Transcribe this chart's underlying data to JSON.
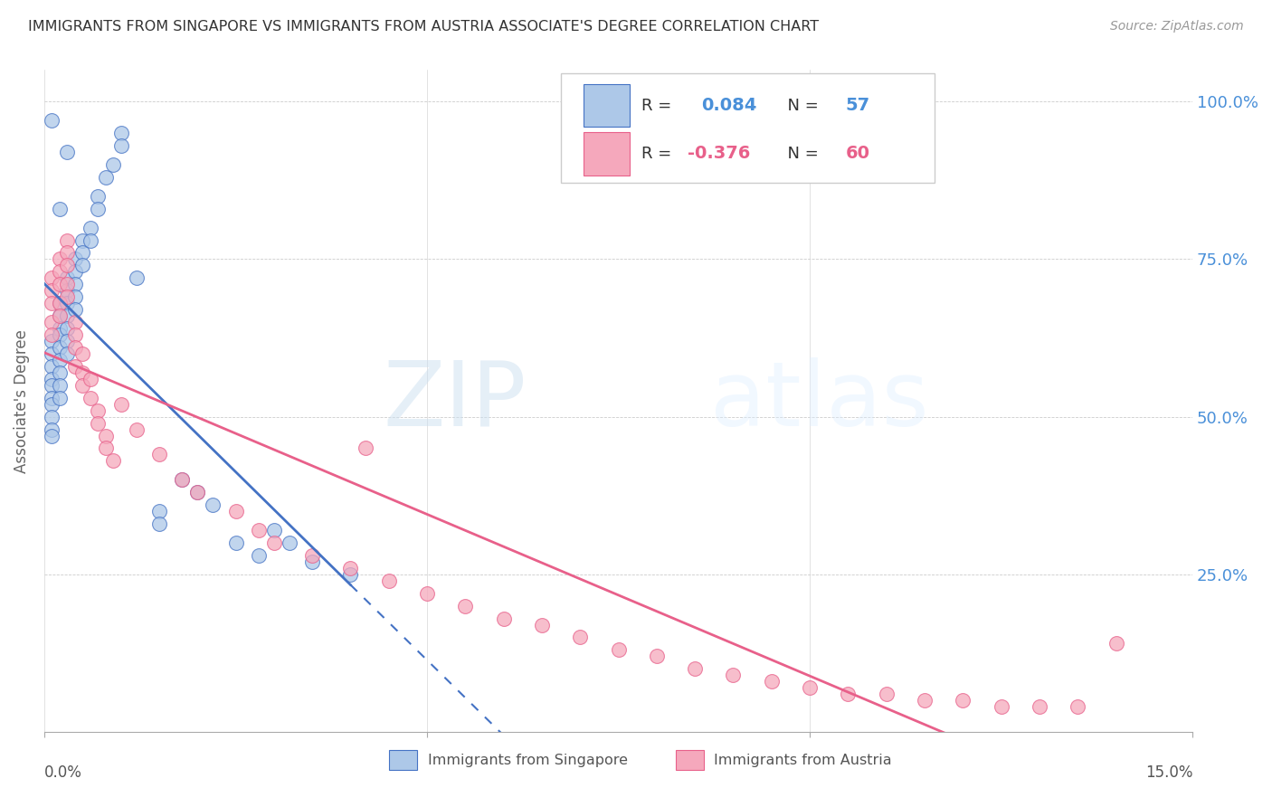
{
  "title": "IMMIGRANTS FROM SINGAPORE VS IMMIGRANTS FROM AUSTRIA ASSOCIATE'S DEGREE CORRELATION CHART",
  "source": "Source: ZipAtlas.com",
  "ylabel": "Associate's Degree",
  "x_lim": [
    0.0,
    0.15
  ],
  "y_lim": [
    0.0,
    1.05
  ],
  "singapore_R": 0.084,
  "singapore_N": 57,
  "austria_R": -0.376,
  "austria_N": 60,
  "singapore_color": "#adc8e8",
  "austria_color": "#f5a8bc",
  "singapore_line_color": "#4472c4",
  "austria_line_color": "#e8608a",
  "watermark_zip": "ZIP",
  "watermark_atlas": "atlas",
  "singapore_points_x": [
    0.001,
    0.001,
    0.001,
    0.001,
    0.001,
    0.001,
    0.001,
    0.001,
    0.001,
    0.001,
    0.002,
    0.002,
    0.002,
    0.002,
    0.002,
    0.002,
    0.002,
    0.002,
    0.002,
    0.003,
    0.003,
    0.003,
    0.003,
    0.003,
    0.003,
    0.003,
    0.004,
    0.004,
    0.004,
    0.004,
    0.004,
    0.005,
    0.005,
    0.005,
    0.006,
    0.006,
    0.007,
    0.007,
    0.008,
    0.009,
    0.01,
    0.01,
    0.012,
    0.015,
    0.015,
    0.018,
    0.02,
    0.022,
    0.025,
    0.028,
    0.03,
    0.032,
    0.035,
    0.04,
    0.001,
    0.002,
    0.003
  ],
  "singapore_points_y": [
    0.62,
    0.6,
    0.58,
    0.56,
    0.55,
    0.53,
    0.52,
    0.5,
    0.48,
    0.47,
    0.68,
    0.66,
    0.64,
    0.63,
    0.61,
    0.59,
    0.57,
    0.55,
    0.53,
    0.72,
    0.7,
    0.68,
    0.66,
    0.64,
    0.62,
    0.6,
    0.75,
    0.73,
    0.71,
    0.69,
    0.67,
    0.78,
    0.76,
    0.74,
    0.8,
    0.78,
    0.85,
    0.83,
    0.88,
    0.9,
    0.95,
    0.93,
    0.72,
    0.35,
    0.33,
    0.4,
    0.38,
    0.36,
    0.3,
    0.28,
    0.32,
    0.3,
    0.27,
    0.25,
    0.97,
    0.83,
    0.92
  ],
  "austria_points_x": [
    0.001,
    0.001,
    0.001,
    0.001,
    0.001,
    0.002,
    0.002,
    0.002,
    0.002,
    0.002,
    0.003,
    0.003,
    0.003,
    0.003,
    0.003,
    0.004,
    0.004,
    0.004,
    0.004,
    0.005,
    0.005,
    0.005,
    0.006,
    0.006,
    0.007,
    0.007,
    0.008,
    0.008,
    0.009,
    0.01,
    0.012,
    0.015,
    0.018,
    0.02,
    0.025,
    0.028,
    0.03,
    0.035,
    0.04,
    0.042,
    0.045,
    0.05,
    0.055,
    0.06,
    0.065,
    0.07,
    0.075,
    0.08,
    0.085,
    0.09,
    0.095,
    0.1,
    0.105,
    0.11,
    0.115,
    0.12,
    0.125,
    0.13,
    0.135,
    0.14
  ],
  "austria_points_y": [
    0.72,
    0.7,
    0.68,
    0.65,
    0.63,
    0.75,
    0.73,
    0.71,
    0.68,
    0.66,
    0.78,
    0.76,
    0.74,
    0.71,
    0.69,
    0.65,
    0.63,
    0.61,
    0.58,
    0.6,
    0.57,
    0.55,
    0.56,
    0.53,
    0.51,
    0.49,
    0.47,
    0.45,
    0.43,
    0.52,
    0.48,
    0.44,
    0.4,
    0.38,
    0.35,
    0.32,
    0.3,
    0.28,
    0.26,
    0.45,
    0.24,
    0.22,
    0.2,
    0.18,
    0.17,
    0.15,
    0.13,
    0.12,
    0.1,
    0.09,
    0.08,
    0.07,
    0.06,
    0.06,
    0.05,
    0.05,
    0.04,
    0.04,
    0.04,
    0.14
  ]
}
